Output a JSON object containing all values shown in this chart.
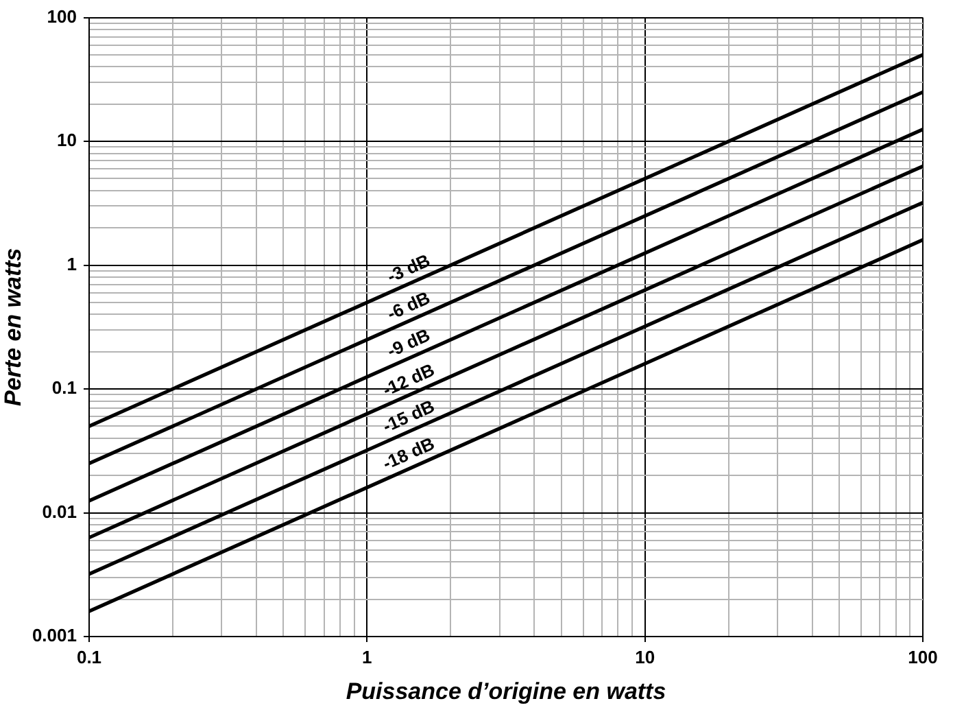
{
  "chart_data": {
    "type": "line",
    "xlabel": "Puissance d’origine en watts",
    "ylabel": "Perte en watts",
    "x": [
      0.1,
      100
    ],
    "series": [
      {
        "name": "-3 dB",
        "color": "#000000",
        "values": [
          0.05,
          50
        ]
      },
      {
        "name": "-6 dB",
        "color": "#000000",
        "values": [
          0.025,
          25
        ]
      },
      {
        "name": "-9 dB",
        "color": "#000000",
        "values": [
          0.0125,
          12.5
        ]
      },
      {
        "name": "-12 dB",
        "color": "#000000",
        "values": [
          0.0063,
          6.3
        ]
      },
      {
        "name": "-15 dB",
        "color": "#000000",
        "values": [
          0.0032,
          3.2
        ]
      },
      {
        "name": "-18 dB",
        "color": "#000000",
        "values": [
          0.0016,
          1.6
        ]
      }
    ],
    "xlim": [
      0.1,
      100
    ],
    "ylim": [
      0.001,
      100
    ],
    "xticks": [
      0.1,
      {
        "value": 0.2,
        "label": null
      },
      {
        "value": 0.3,
        "label": null
      },
      {
        "value": 0.4,
        "label": null
      },
      {
        "value": 0.5,
        "label": null
      },
      {
        "value": 0.6,
        "label": null
      },
      {
        "value": 0.7,
        "label": null
      },
      {
        "value": 0.8,
        "label": null
      },
      {
        "value": 0.9,
        "label": null
      },
      1,
      {
        "value": 2,
        "label": null
      },
      {
        "value": 3,
        "label": null
      },
      {
        "value": 4,
        "label": null
      },
      {
        "value": 5,
        "label": null
      },
      {
        "value": 6,
        "label": null
      },
      {
        "value": 7,
        "label": null
      },
      {
        "value": 8,
        "label": null
      },
      {
        "value": 9,
        "label": null
      },
      10,
      {
        "value": 20,
        "label": null
      },
      {
        "value": 30,
        "label": null
      },
      {
        "value": 40,
        "label": null
      },
      {
        "value": 50,
        "label": null
      },
      {
        "value": 60,
        "label": null
      },
      {
        "value": 70,
        "label": null
      },
      {
        "value": 80,
        "label": null
      },
      {
        "value": 90,
        "label": null
      },
      100
    ],
    "yticks": [
      0.001,
      {
        "value": 0.002,
        "label": null
      },
      {
        "value": 0.003,
        "label": null
      },
      {
        "value": 0.004,
        "label": null
      },
      {
        "value": 0.005,
        "label": null
      },
      {
        "value": 0.006,
        "label": null
      },
      {
        "value": 0.007,
        "label": null
      },
      {
        "value": 0.008,
        "label": null
      },
      {
        "value": 0.009,
        "label": null
      },
      0.01,
      {
        "value": 0.02,
        "label": null
      },
      {
        "value": 0.03,
        "label": null
      },
      {
        "value": 0.04,
        "label": null
      },
      {
        "value": 0.05,
        "label": null
      },
      {
        "value": 0.06,
        "label": null
      },
      {
        "value": 0.07,
        "label": null
      },
      {
        "value": 0.08,
        "label": null
      },
      {
        "value": 0.09,
        "label": null
      },
      0.1,
      {
        "value": 0.2,
        "label": null
      },
      {
        "value": 0.3,
        "label": null
      },
      {
        "value": 0.4,
        "label": null
      },
      {
        "value": 0.5,
        "label": null
      },
      {
        "value": 0.6,
        "label": null
      },
      {
        "value": 0.7,
        "label": null
      },
      {
        "value": 0.8,
        "label": null
      },
      {
        "value": 0.9,
        "label": null
      },
      1,
      {
        "value": 2,
        "label": null
      },
      {
        "value": 3,
        "label": null
      },
      {
        "value": 4,
        "label": null
      },
      {
        "value": 5,
        "label": null
      },
      {
        "value": 6,
        "label": null
      },
      {
        "value": 7,
        "label": null
      },
      {
        "value": 8,
        "label": null
      },
      {
        "value": 9,
        "label": null
      },
      10,
      {
        "value": 20,
        "label": null
      },
      {
        "value": 30,
        "label": null
      },
      {
        "value": 40,
        "label": null
      },
      {
        "value": 50,
        "label": null
      },
      {
        "value": 60,
        "label": null
      },
      {
        "value": 70,
        "label": null
      },
      {
        "value": 80,
        "label": null
      },
      {
        "value": 90,
        "label": null
      },
      100
    ],
    "log": "xy",
    "grid": true,
    "marker": "none",
    "line_style": "solid"
  }
}
